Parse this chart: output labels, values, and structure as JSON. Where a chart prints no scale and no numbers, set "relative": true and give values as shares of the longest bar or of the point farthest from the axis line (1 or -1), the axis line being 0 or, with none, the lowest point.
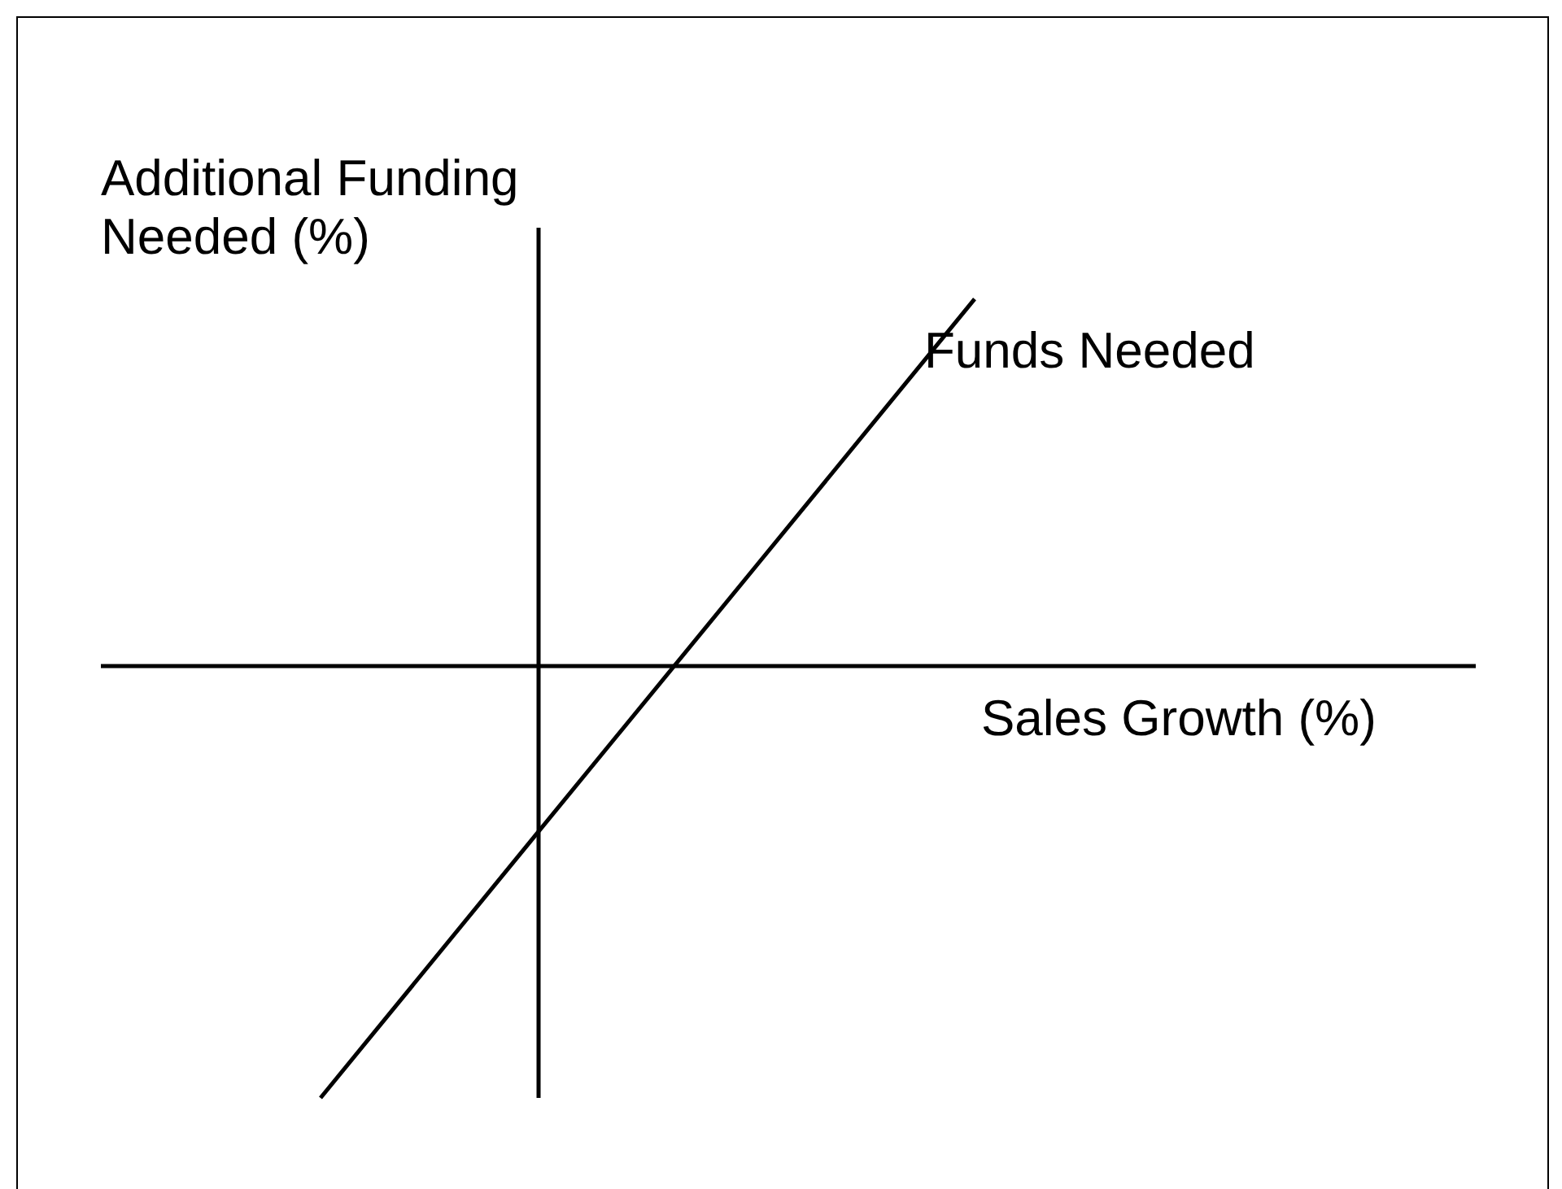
{
  "chart_data": {
    "type": "line",
    "relative": true,
    "xlabel": "Sales Growth (%)",
    "ylabel": "Additional Funding Needed (%)",
    "categories": [
      null,
      null,
      null,
      null
    ],
    "legend": false,
    "marker": "none",
    "line_style": "solid",
    "series": [
      {
        "name": "Funds Needed",
        "color": "#000000",
        "values": [
          -1,
          -0.383,
          0.233,
          0.85
        ]
      }
    ]
  }
}
